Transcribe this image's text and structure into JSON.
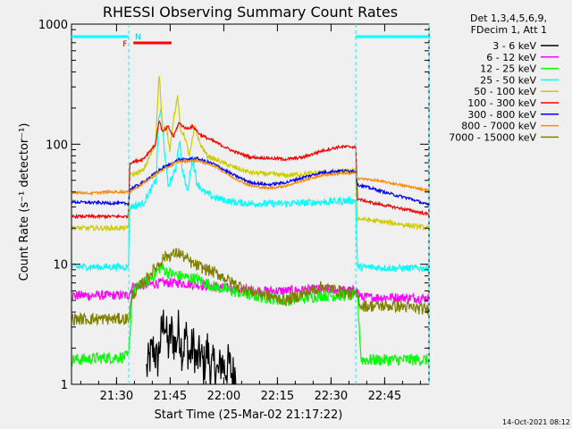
{
  "chart_data": {
    "type": "line",
    "title": "RHESSI Observing Summary Count Rates",
    "xlabel": "Start Time (25-Mar-02 21:17:22)",
    "ylabel": "Count Rate (s⁻¹ detector⁻¹)",
    "y_scale": "log",
    "ylim": [
      1,
      1000
    ],
    "xlim_minutes_since_start": [
      0,
      100
    ],
    "x_ticks": [
      {
        "label": "21:30",
        "min": 12.6
      },
      {
        "label": "21:45",
        "min": 27.6
      },
      {
        "label": "22:00",
        "min": 42.6
      },
      {
        "label": "22:15",
        "min": 57.6
      },
      {
        "label": "22:30",
        "min": 72.6
      },
      {
        "label": "22:45",
        "min": 87.6
      }
    ],
    "y_ticks": [
      {
        "label": "1",
        "value": 1
      },
      {
        "label": "10",
        "value": 10
      },
      {
        "label": "100",
        "value": 100
      },
      {
        "label": "1000",
        "value": 1000
      }
    ],
    "legend_header": [
      "Det 1,3,4,5,6,9,",
      "FDecim 1, Att 1"
    ],
    "legend_placement": "right",
    "footer_date": "14-Oct-2021 08:12",
    "annotations": {
      "night_label": "N",
      "flare_label": "F",
      "night_intervals": [
        [
          0,
          16.0
        ],
        [
          79.5,
          100
        ]
      ],
      "flare_interval": [
        17.3,
        28.0
      ]
    },
    "series": [
      {
        "name": "3 - 6 keV",
        "color": "#000000",
        "x": [
          21,
          22,
          23,
          24,
          25,
          26,
          27,
          28,
          29,
          30,
          31,
          32,
          33,
          34,
          35,
          36,
          37,
          38,
          39,
          40,
          41,
          42,
          43,
          44,
          45,
          46
        ],
        "y": [
          1.3,
          1.7,
          2.0,
          1.5,
          2.5,
          3.6,
          2.0,
          2.8,
          2.0,
          3.0,
          1.8,
          2.6,
          1.6,
          2.2,
          1.5,
          1.8,
          1.4,
          2.0,
          1.3,
          1.5,
          1.2,
          1.6,
          1.3,
          1.5,
          1.2,
          1.3
        ]
      },
      {
        "name": "6 - 12 keV",
        "color": "#ff00ff",
        "x": [
          0,
          16,
          17,
          25,
          30,
          40,
          50,
          60,
          70,
          80,
          81,
          90,
          100
        ],
        "y": [
          5.5,
          5.5,
          6.5,
          7.0,
          7.0,
          6.5,
          6.0,
          6.0,
          6.2,
          6.0,
          5.3,
          5.3,
          5.2
        ]
      },
      {
        "name": "12 - 25 keV",
        "color": "#00ff00",
        "x": [
          0,
          16,
          17,
          22,
          25,
          27,
          30,
          35,
          40,
          50,
          60,
          70,
          80,
          81,
          90,
          100
        ],
        "y": [
          1.6,
          1.7,
          6.0,
          7.5,
          9.5,
          8.5,
          8.0,
          7.5,
          6.5,
          5.5,
          5.0,
          5.5,
          5.5,
          1.6,
          1.6,
          1.6
        ]
      },
      {
        "name": "25 - 50 keV",
        "color": "#00ffff",
        "x": [
          0,
          15.9,
          16.3,
          20,
          23.7,
          24.3,
          25,
          26,
          27,
          29,
          30.2,
          31,
          32.5,
          33.8,
          35,
          37,
          40,
          45,
          50,
          60,
          70,
          79.5,
          80,
          85,
          90,
          95,
          100
        ],
        "y": [
          9.5,
          9.5,
          30,
          32,
          50,
          150,
          200,
          90,
          45,
          60,
          110,
          60,
          40,
          80,
          48,
          40,
          36,
          33,
          32,
          32,
          33,
          34,
          9.5,
          9.4,
          9.3,
          9.3,
          9.3
        ]
      },
      {
        "name": "50 - 100 keV",
        "color": "#cccc00",
        "x": [
          0,
          15.9,
          16.3,
          20,
          23.5,
          24.5,
          25.5,
          26.5,
          27.5,
          28.5,
          29.7,
          30.5,
          31.5,
          33,
          34.5,
          36,
          38,
          40,
          45,
          50,
          60,
          70,
          79.5,
          80,
          90,
          95,
          100
        ],
        "y": [
          20,
          20,
          55,
          60,
          100,
          400,
          130,
          140,
          90,
          160,
          250,
          130,
          120,
          80,
          140,
          100,
          80,
          75,
          65,
          58,
          55,
          58,
          60,
          24,
          22,
          21,
          20
        ]
      },
      {
        "name": "100 - 300 keV",
        "color": "#ff0000",
        "x": [
          0,
          15.9,
          16.3,
          20,
          23.5,
          24.5,
          25.5,
          27,
          28.5,
          30,
          32,
          34,
          36,
          40,
          45,
          50,
          60,
          65,
          70,
          75,
          79.5,
          80,
          85,
          90,
          95,
          100
        ],
        "y": [
          25,
          25,
          70,
          75,
          100,
          160,
          125,
          140,
          115,
          150,
          135,
          140,
          120,
          105,
          88,
          78,
          75,
          78,
          88,
          95,
          95,
          35,
          32,
          30,
          28,
          26
        ]
      },
      {
        "name": "300 - 800 keV",
        "color": "#0000ff",
        "x": [
          0,
          15.9,
          16.3,
          20,
          25,
          30,
          35,
          40,
          45,
          50,
          55,
          60,
          65,
          70,
          75,
          79.5,
          80,
          85,
          90,
          95,
          100
        ],
        "y": [
          33,
          32,
          42,
          48,
          62,
          74,
          76,
          68,
          56,
          48,
          46,
          48,
          53,
          58,
          60,
          60,
          46,
          42,
          38,
          35,
          31
        ]
      },
      {
        "name": "800 - 7000 keV",
        "color": "#ff8800",
        "x": [
          0,
          5,
          10,
          15.9,
          16.3,
          20,
          25,
          30,
          35,
          40,
          45,
          50,
          55,
          60,
          65,
          70,
          75,
          79.5,
          80,
          85,
          90,
          95,
          100
        ],
        "y": [
          40,
          39,
          40,
          40,
          40,
          47,
          60,
          72,
          73,
          66,
          53,
          45,
          43,
          45,
          50,
          55,
          57,
          57,
          52,
          50,
          47,
          44,
          41
        ]
      },
      {
        "name": "7000 - 15000 keV",
        "color": "#808000",
        "x": [
          0,
          16,
          17,
          20,
          23,
          26,
          30,
          34,
          38,
          42,
          45,
          50,
          60,
          70,
          80,
          81,
          90,
          100
        ],
        "y": [
          3.5,
          3.5,
          5.5,
          7.0,
          9.0,
          11.5,
          12.5,
          10.0,
          9.0,
          8.0,
          7.0,
          6.0,
          5.0,
          6.5,
          5.5,
          4.5,
          4.5,
          4.2
        ]
      }
    ]
  }
}
